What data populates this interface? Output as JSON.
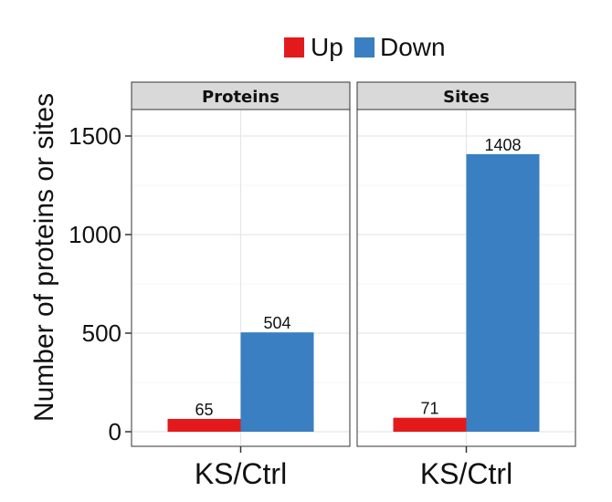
{
  "chart_data": {
    "type": "bar",
    "ylabel": "Number of proteins or sites",
    "ylim": [
      -50,
      1650
    ],
    "yticks": [
      0,
      500,
      1000,
      1500
    ],
    "ytick_labels": [
      "0",
      "500",
      "1000",
      "1500"
    ],
    "grid": true,
    "legend": {
      "placement": "top",
      "entries": [
        {
          "name": "Up",
          "color": "#e31a1c"
        },
        {
          "name": "Down",
          "color": "#3a7fc1"
        }
      ]
    },
    "panels": [
      {
        "title": "Proteins",
        "categories": [
          "KS/Ctrl"
        ],
        "series": [
          {
            "name": "Up",
            "values": [
              65
            ],
            "labels": [
              "65"
            ]
          },
          {
            "name": "Down",
            "values": [
              504
            ],
            "labels": [
              "504"
            ]
          }
        ]
      },
      {
        "title": "Sites",
        "categories": [
          "KS/Ctrl"
        ],
        "series": [
          {
            "name": "Up",
            "values": [
              71
            ],
            "labels": [
              "71"
            ]
          },
          {
            "name": "Down",
            "values": [
              1408
            ],
            "labels": [
              "1408"
            ]
          }
        ]
      }
    ]
  }
}
